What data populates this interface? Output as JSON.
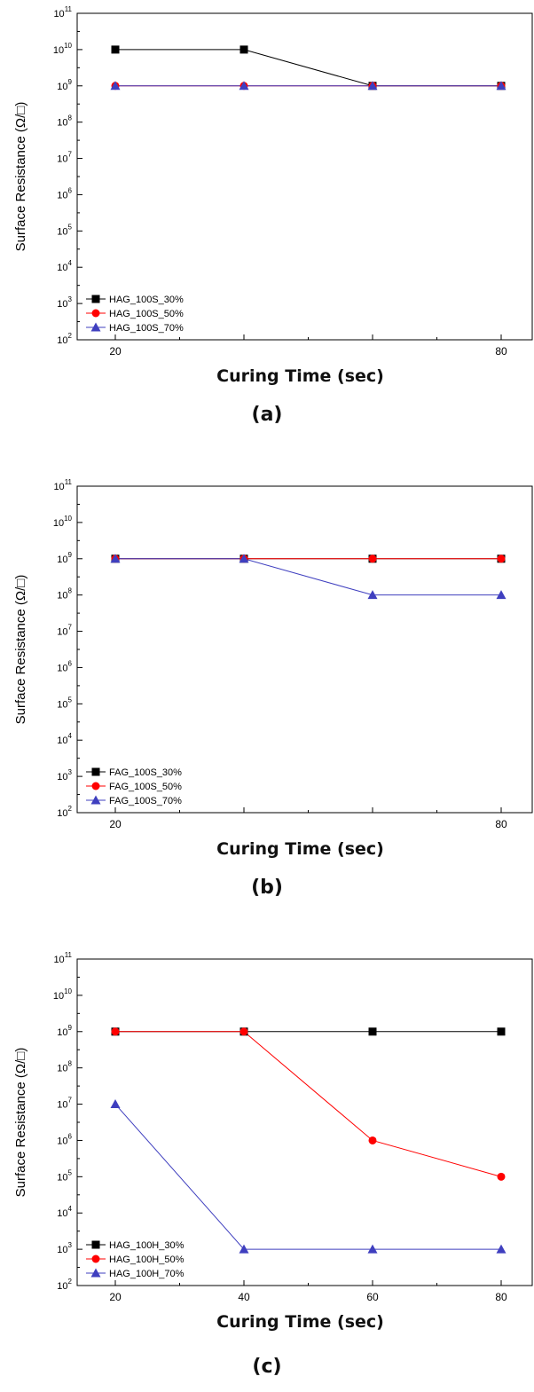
{
  "chart_data": [
    {
      "type": "line",
      "caption": "(a)",
      "xlabel": "Curing Time (sec)",
      "ylabel": "Surface Resistance (Ω/□)",
      "y_scale": "log",
      "ylim": [
        100,
        100000000000
      ],
      "xlim": [
        20,
        80
      ],
      "x_tick_labels": [
        20,
        80
      ],
      "x_ticks": [
        20,
        40,
        60,
        80
      ],
      "y_ticks": [
        2,
        3,
        4,
        5,
        6,
        7,
        8,
        9,
        10,
        11
      ],
      "legend_position": "bottom-left",
      "x": [
        20,
        40,
        60,
        80
      ],
      "series": [
        {
          "name": "HAG_100S_30%",
          "color": "#000000",
          "marker": "square",
          "values": [
            10000000000,
            10000000000,
            1000000000,
            1000000000
          ]
        },
        {
          "name": "HAG_100S_50%",
          "color": "#ff0000",
          "marker": "circle",
          "values": [
            1000000000,
            1000000000,
            1000000000,
            1000000000
          ]
        },
        {
          "name": "HAG_100S_70%",
          "color": "#3f3fbf",
          "marker": "triangle",
          "values": [
            1000000000,
            1000000000,
            1000000000,
            1000000000
          ]
        }
      ]
    },
    {
      "type": "line",
      "caption": "(b)",
      "xlabel": "Curing Time (sec)",
      "ylabel": "Surface Resistance (Ω/□)",
      "y_scale": "log",
      "ylim": [
        100,
        100000000000
      ],
      "xlim": [
        20,
        80
      ],
      "x_tick_labels": [
        20,
        80
      ],
      "x_ticks": [
        20,
        40,
        60,
        80
      ],
      "y_ticks": [
        2,
        3,
        4,
        5,
        6,
        7,
        8,
        9,
        10,
        11
      ],
      "legend_position": "bottom-left",
      "x": [
        20,
        40,
        60,
        80
      ],
      "series": [
        {
          "name": "FAG_100S_30%",
          "color": "#000000",
          "marker": "square",
          "values": [
            1000000000,
            1000000000,
            1000000000,
            1000000000
          ]
        },
        {
          "name": "FAG_100S_50%",
          "color": "#ff0000",
          "marker": "circle",
          "values": [
            1000000000,
            1000000000,
            1000000000,
            1000000000
          ]
        },
        {
          "name": "FAG_100S_70%",
          "color": "#3f3fbf",
          "marker": "triangle",
          "values": [
            1000000000,
            1000000000,
            100000000,
            100000000
          ]
        }
      ]
    },
    {
      "type": "line",
      "caption": "(c)",
      "xlabel": "Curing Time (sec)",
      "ylabel": "Surface Resistance (Ω/□)",
      "y_scale": "log",
      "ylim": [
        100,
        100000000000
      ],
      "xlim": [
        20,
        80
      ],
      "x_tick_labels": [
        20,
        40,
        60,
        80
      ],
      "x_ticks": [
        20,
        40,
        60,
        80
      ],
      "y_ticks": [
        2,
        3,
        4,
        5,
        6,
        7,
        8,
        9,
        10,
        11
      ],
      "legend_position": "bottom-left",
      "x": [
        20,
        40,
        60,
        80
      ],
      "series": [
        {
          "name": "HAG_100H_30%",
          "color": "#000000",
          "marker": "square",
          "values": [
            1000000000,
            1000000000,
            1000000000,
            1000000000
          ]
        },
        {
          "name": "HAG_100H_50%",
          "color": "#ff0000",
          "marker": "circle",
          "values": [
            1000000000,
            1000000000,
            1000000,
            100000
          ]
        },
        {
          "name": "HAG_100H_70%",
          "color": "#3f3fbf",
          "marker": "triangle",
          "values": [
            10000000,
            1000,
            1000,
            1000
          ]
        }
      ]
    }
  ]
}
